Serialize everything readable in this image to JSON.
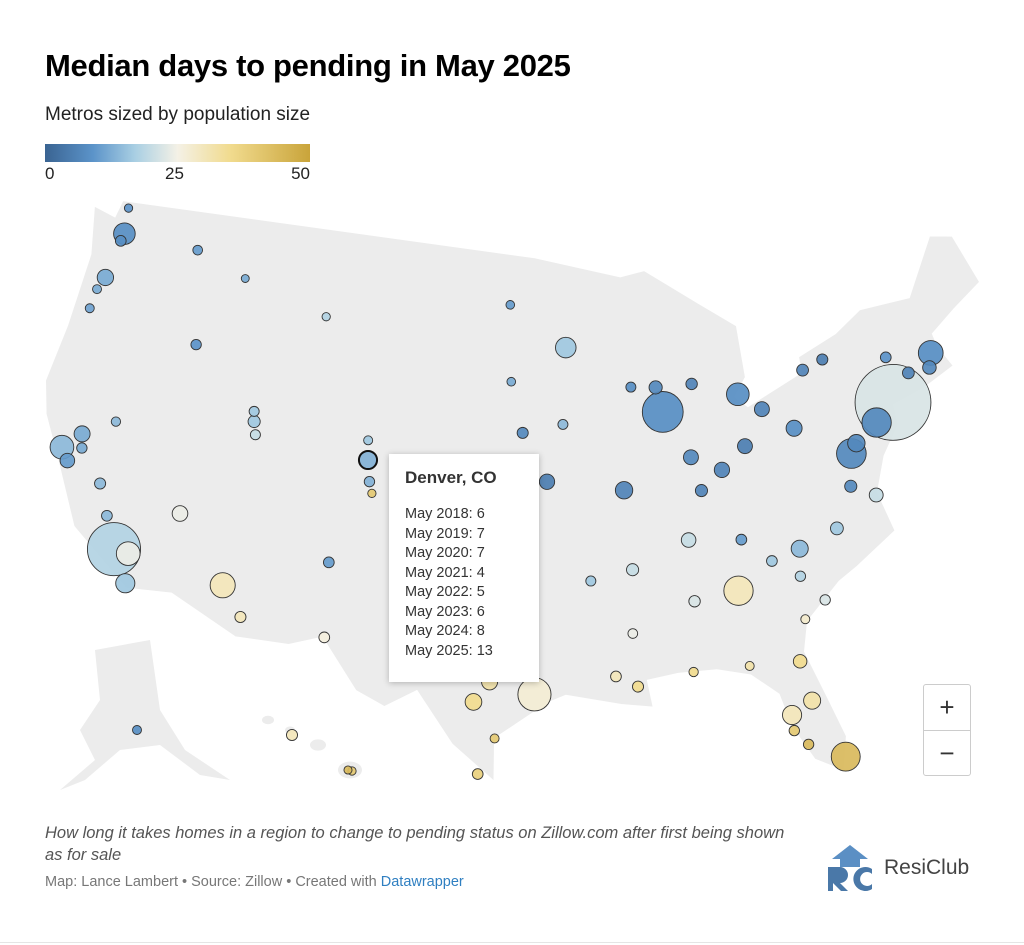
{
  "header": {
    "title": "Median days to pending in May 2025",
    "subtitle": "Metros sized by population size"
  },
  "legend": {
    "ticks": [
      "0",
      "25",
      "50"
    ],
    "range": [
      0,
      50
    ],
    "colors": [
      "#3a6492",
      "#5b93c9",
      "#a9cfe3",
      "#f4f1e6",
      "#f1db8e",
      "#c9a43a"
    ]
  },
  "tooltip": {
    "title": "Denver, CO",
    "rows": [
      "May 2018: 6",
      "May 2019: 7",
      "May 2020: 7",
      "May 2021: 4",
      "May 2022: 5",
      "May 2023: 6",
      "May 2024: 8",
      "May 2025: 13"
    ]
  },
  "zoom_controls": {
    "plus": "+",
    "minus": "−"
  },
  "footer": {
    "description": "How long it takes homes in a region to change to pending status on Zillow.com after first being shown as for sale",
    "byline_prefix": "Map: Lance Lambert • Source: Zillow • Created with ",
    "byline_link": "Datawrapper",
    "logo_text": "ResiClub",
    "logo_letters": "RC"
  },
  "map_data": {
    "type": "bubble-map",
    "metric": "median days to pending, May 2025",
    "bubbles": [
      {
        "lon": -122.3,
        "lat": 47.6,
        "pop": 4,
        "v": 8
      },
      {
        "lon": -122.4,
        "lat": 47.25,
        "pop": 0.9,
        "v": 8
      },
      {
        "lon": -122.5,
        "lat": 48.75,
        "pop": 0.2,
        "v": 9
      },
      {
        "lon": -117.4,
        "lat": 47.7,
        "pop": 0.6,
        "v": 10
      },
      {
        "lon": -122.7,
        "lat": 45.5,
        "pop": 2.5,
        "v": 12
      },
      {
        "lon": -123,
        "lat": 44.9,
        "pop": 0.4,
        "v": 12
      },
      {
        "lon": -123.1,
        "lat": 44,
        "pop": 0.4,
        "v": 11
      },
      {
        "lon": -116.2,
        "lat": 43.6,
        "pop": 0.8,
        "v": 9
      },
      {
        "lon": -121.5,
        "lat": 38.6,
        "pop": 2.4,
        "v": 12
      },
      {
        "lon": -122.4,
        "lat": 37.8,
        "pop": 4.6,
        "v": 14
      },
      {
        "lon": -121.9,
        "lat": 37.3,
        "pop": 2,
        "v": 10
      },
      {
        "lon": -119.8,
        "lat": 36.7,
        "pop": 1,
        "v": 14
      },
      {
        "lon": -121.3,
        "lat": 38,
        "pop": 0.8,
        "v": 12
      },
      {
        "lon": -119,
        "lat": 35.4,
        "pop": 0.9,
        "v": 14
      },
      {
        "lon": -118.2,
        "lat": 34.05,
        "pop": 13,
        "v": 18
      },
      {
        "lon": -117.4,
        "lat": 34,
        "pop": 4.6,
        "v": 24
      },
      {
        "lon": -117.2,
        "lat": 32.7,
        "pop": 3.3,
        "v": 16
      },
      {
        "lon": -115.1,
        "lat": 36.2,
        "pop": 2.3,
        "v": 24
      },
      {
        "lon": -112.1,
        "lat": 33.45,
        "pop": 5,
        "v": 30
      },
      {
        "lon": -110.9,
        "lat": 32.2,
        "pop": 1,
        "v": 30
      },
      {
        "lon": -111.9,
        "lat": 40.76,
        "pop": 1.3,
        "v": 16
      },
      {
        "lon": -112,
        "lat": 41.2,
        "pop": 0.7,
        "v": 16
      },
      {
        "lon": -111.7,
        "lat": 40.2,
        "pop": 0.7,
        "v": 20
      },
      {
        "lon": -119.8,
        "lat": 39.5,
        "pop": 0.5,
        "v": 14
      },
      {
        "lon": -106.6,
        "lat": 35.1,
        "pop": 0.9,
        "v": 10
      },
      {
        "lon": -106.4,
        "lat": 31.8,
        "pop": 0.9,
        "v": 26
      },
      {
        "lon": -104.8,
        "lat": 38.8,
        "pop": 0.8,
        "v": 13
      },
      {
        "lon": -105,
        "lat": 39.74,
        "pop": 3,
        "v": 13
      },
      {
        "lon": -105.1,
        "lat": 40.6,
        "pop": 0.4,
        "v": 16
      },
      {
        "lon": -104.6,
        "lat": 38.3,
        "pop": 0.2,
        "v": 40
      },
      {
        "lon": -108.5,
        "lat": 45.8,
        "pop": 0.2,
        "v": 18
      },
      {
        "lon": -114,
        "lat": 46.9,
        "pop": 0.1,
        "v": 12
      },
      {
        "lon": -93.3,
        "lat": 44.98,
        "pop": 3.7,
        "v": 16
      },
      {
        "lon": -87.6,
        "lat": 41.9,
        "pop": 9.5,
        "v": 8
      },
      {
        "lon": -87.9,
        "lat": 43,
        "pop": 1.6,
        "v": 7
      },
      {
        "lon": -83,
        "lat": 42.3,
        "pop": 4.3,
        "v": 8
      },
      {
        "lon": -83,
        "lat": 40,
        "pop": 2.1,
        "v": 5
      },
      {
        "lon": -81.7,
        "lat": 41.5,
        "pop": 2.1,
        "v": 6
      },
      {
        "lon": -84.5,
        "lat": 39.1,
        "pop": 2.2,
        "v": 6
      },
      {
        "lon": -86.2,
        "lat": 39.8,
        "pop": 2.1,
        "v": 7
      },
      {
        "lon": -90.2,
        "lat": 38.6,
        "pop": 2.8,
        "v": 6
      },
      {
        "lon": -94.6,
        "lat": 39.1,
        "pop": 2.2,
        "v": 5
      },
      {
        "lon": -96,
        "lat": 41.25,
        "pop": 1,
        "v": 7
      },
      {
        "lon": -93.6,
        "lat": 41.6,
        "pop": 0.7,
        "v": 14
      },
      {
        "lon": -97.3,
        "lat": 37.7,
        "pop": 0.6,
        "v": 8
      },
      {
        "lon": -96,
        "lat": 36.2,
        "pop": 1,
        "v": 14
      },
      {
        "lon": -97.5,
        "lat": 35.5,
        "pop": 1.4,
        "v": 18
      },
      {
        "lon": -85.8,
        "lat": 38.3,
        "pop": 1.3,
        "v": 6
      },
      {
        "lon": -86.8,
        "lat": 36.2,
        "pop": 2,
        "v": 20
      },
      {
        "lon": -90,
        "lat": 35.1,
        "pop": 1.3,
        "v": 20
      },
      {
        "lon": -80,
        "lat": 40.45,
        "pop": 2.4,
        "v": 8
      },
      {
        "lon": -78.9,
        "lat": 42.9,
        "pop": 1.2,
        "v": 6
      },
      {
        "lon": -77.6,
        "lat": 43.2,
        "pop": 1,
        "v": 5
      },
      {
        "lon": -85.7,
        "lat": 43,
        "pop": 1.1,
        "v": 6
      },
      {
        "lon": -89.4,
        "lat": 43.1,
        "pop": 0.7,
        "v": 8
      },
      {
        "lon": -96.8,
        "lat": 46.9,
        "pop": 0.3,
        "v": 10
      },
      {
        "lon": -96.7,
        "lat": 43.5,
        "pop": 0.3,
        "v": 12
      },
      {
        "lon": -74,
        "lat": 40.7,
        "pop": 19.5,
        "v": 22
      },
      {
        "lon": -71.1,
        "lat": 42.4,
        "pop": 4.9,
        "v": 8
      },
      {
        "lon": -75.2,
        "lat": 40,
        "pop": 6.2,
        "v": 7
      },
      {
        "lon": -76.6,
        "lat": 39.3,
        "pop": 2.8,
        "v": 7
      },
      {
        "lon": -77,
        "lat": 38.9,
        "pop": 6.3,
        "v": 7
      },
      {
        "lon": -77.4,
        "lat": 37.5,
        "pop": 1.3,
        "v": 7
      },
      {
        "lon": -76.1,
        "lat": 36.9,
        "pop": 1.8,
        "v": 20
      },
      {
        "lon": -78.6,
        "lat": 35.8,
        "pop": 1.5,
        "v": 16
      },
      {
        "lon": -80.8,
        "lat": 35.2,
        "pop": 2.7,
        "v": 14
      },
      {
        "lon": -84.4,
        "lat": 33.75,
        "pop": 6.2,
        "v": 30
      },
      {
        "lon": -81.7,
        "lat": 30.3,
        "pop": 1.7,
        "v": 35
      },
      {
        "lon": -81.4,
        "lat": 28.5,
        "pop": 2.7,
        "v": 32
      },
      {
        "lon": -82.5,
        "lat": 28,
        "pop": 3.3,
        "v": 30
      },
      {
        "lon": -80.2,
        "lat": 25.8,
        "pop": 6.1,
        "v": 44
      },
      {
        "lon": -72.7,
        "lat": 41.8,
        "pop": 1.2,
        "v": 6
      },
      {
        "lon": -71.4,
        "lat": 41.8,
        "pop": 1.7,
        "v": 7
      },
      {
        "lon": -73.8,
        "lat": 42.7,
        "pop": 0.9,
        "v": 9
      },
      {
        "lon": -82.4,
        "lat": 34.85,
        "pop": 0.9,
        "v": 16
      },
      {
        "lon": -81,
        "lat": 34,
        "pop": 0.8,
        "v": 18
      },
      {
        "lon": -79.9,
        "lat": 32.8,
        "pop": 0.8,
        "v": 22
      },
      {
        "lon": -86.8,
        "lat": 33.5,
        "pop": 1.1,
        "v": 22
      },
      {
        "lon": -90.1,
        "lat": 29.95,
        "pop": 1,
        "v": 35
      },
      {
        "lon": -91.2,
        "lat": 30.45,
        "pop": 0.9,
        "v": 30
      },
      {
        "lon": -95.4,
        "lat": 29.76,
        "pop": 7.3,
        "v": 27
      },
      {
        "lon": -96.8,
        "lat": 32.8,
        "pop": 7.9,
        "v": 32
      },
      {
        "lon": -97.7,
        "lat": 30.3,
        "pop": 2.4,
        "v": 32
      },
      {
        "lon": -98.5,
        "lat": 29.4,
        "pop": 2.6,
        "v": 35
      },
      {
        "lon": -97.4,
        "lat": 27.8,
        "pop": 0.4,
        "v": 40
      },
      {
        "lon": -98.2,
        "lat": 26.2,
        "pop": 0.9,
        "v": 38
      },
      {
        "lon": -90.2,
        "lat": 32.3,
        "pop": 0.6,
        "v": 24
      },
      {
        "lon": -92.3,
        "lat": 34.7,
        "pop": 0.7,
        "v": 16
      },
      {
        "lon": -83.9,
        "lat": 35.96,
        "pop": 0.9,
        "v": 10
      },
      {
        "lon": -81.9,
        "lat": 26.6,
        "pop": 0.8,
        "v": 44
      },
      {
        "lon": -82.5,
        "lat": 27.3,
        "pop": 0.8,
        "v": 40
      },
      {
        "lon": -87.2,
        "lat": 30.4,
        "pop": 0.5,
        "v": 35
      },
      {
        "lon": -84.3,
        "lat": 30.4,
        "pop": 0.4,
        "v": 32
      },
      {
        "lon": -81.1,
        "lat": 32.1,
        "pop": 0.4,
        "v": 28
      }
    ],
    "alaska": [
      {
        "pop": 0.4,
        "v": 8
      }
    ],
    "hawaii": [
      {
        "pop": 1,
        "v": 30
      },
      {
        "pop": 0.2,
        "v": 40
      },
      {
        "pop": 0.15,
        "v": 44
      }
    ]
  }
}
